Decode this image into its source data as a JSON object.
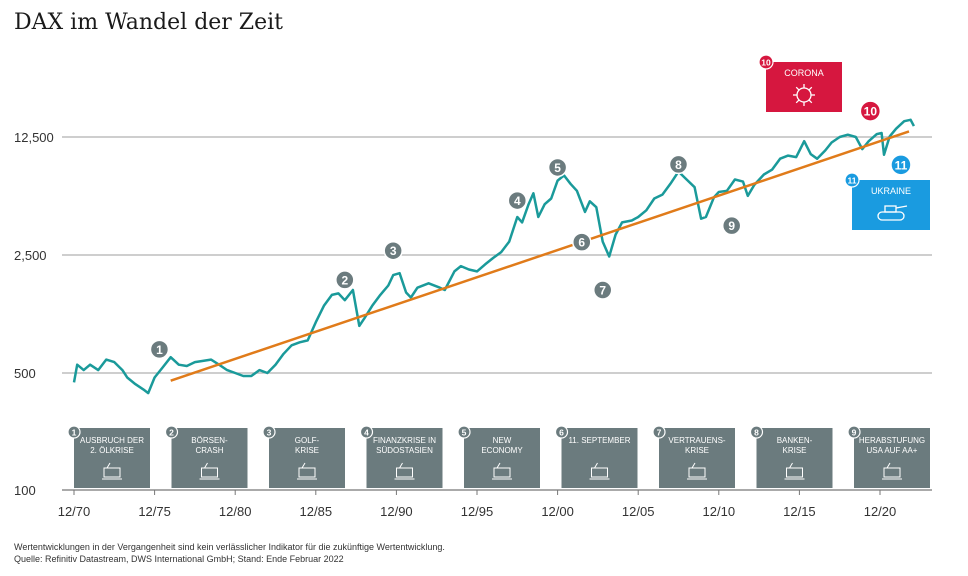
{
  "chart_data": {
    "type": "line",
    "title": "DAX im Wandel der Zeit",
    "y_scale": "log",
    "ylim": [
      100,
      40000
    ],
    "xlim": [
      1970,
      2022.2
    ],
    "yticks": [
      {
        "value": 500,
        "label": "500"
      },
      {
        "value": 2500,
        "label": "2,500"
      },
      {
        "value": 12500,
        "label": "12,500"
      }
    ],
    "ybase_label": "100",
    "xticks": [
      {
        "value": 1970,
        "label": "12/70"
      },
      {
        "value": 1975,
        "label": "12/75"
      },
      {
        "value": 1980,
        "label": "12/80"
      },
      {
        "value": 1985,
        "label": "12/85"
      },
      {
        "value": 1990,
        "label": "12/90"
      },
      {
        "value": 1995,
        "label": "12/95"
      },
      {
        "value": 2000,
        "label": "12/00"
      },
      {
        "value": 2005,
        "label": "12/05"
      },
      {
        "value": 2010,
        "label": "12/10"
      },
      {
        "value": 2015,
        "label": "12/15"
      },
      {
        "value": 2020,
        "label": "12/20"
      }
    ],
    "series": [
      {
        "color": "#1a9a9a",
        "points": [
          [
            1970.0,
            440
          ],
          [
            1970.2,
            560
          ],
          [
            1970.6,
            520
          ],
          [
            1971.0,
            560
          ],
          [
            1971.5,
            520
          ],
          [
            1972.0,
            600
          ],
          [
            1972.5,
            580
          ],
          [
            1973.0,
            520
          ],
          [
            1973.3,
            470
          ],
          [
            1973.8,
            430
          ],
          [
            1974.3,
            400
          ],
          [
            1974.6,
            380
          ],
          [
            1975.0,
            470
          ],
          [
            1975.5,
            540
          ],
          [
            1976.0,
            620
          ],
          [
            1976.5,
            560
          ],
          [
            1977.0,
            550
          ],
          [
            1977.5,
            580
          ],
          [
            1978.0,
            590
          ],
          [
            1978.5,
            600
          ],
          [
            1979.0,
            560
          ],
          [
            1979.5,
            520
          ],
          [
            1980.0,
            500
          ],
          [
            1980.5,
            480
          ],
          [
            1981.0,
            480
          ],
          [
            1981.5,
            520
          ],
          [
            1982.0,
            500
          ],
          [
            1982.5,
            560
          ],
          [
            1983.0,
            650
          ],
          [
            1983.5,
            730
          ],
          [
            1984.0,
            760
          ],
          [
            1984.5,
            780
          ],
          [
            1985.0,
            1000
          ],
          [
            1985.5,
            1250
          ],
          [
            1986.0,
            1450
          ],
          [
            1986.4,
            1480
          ],
          [
            1986.8,
            1350
          ],
          [
            1987.3,
            1550
          ],
          [
            1987.7,
            950
          ],
          [
            1988.0,
            1050
          ],
          [
            1988.5,
            1250
          ],
          [
            1989.0,
            1450
          ],
          [
            1989.5,
            1650
          ],
          [
            1989.8,
            1900
          ],
          [
            1990.2,
            1950
          ],
          [
            1990.6,
            1500
          ],
          [
            1990.9,
            1400
          ],
          [
            1991.3,
            1600
          ],
          [
            1992.0,
            1700
          ],
          [
            1992.7,
            1600
          ],
          [
            1993.0,
            1550
          ],
          [
            1993.6,
            2000
          ],
          [
            1994.0,
            2150
          ],
          [
            1994.5,
            2050
          ],
          [
            1995.0,
            2000
          ],
          [
            1995.5,
            2200
          ],
          [
            1996.0,
            2400
          ],
          [
            1996.5,
            2600
          ],
          [
            1997.0,
            3000
          ],
          [
            1997.5,
            4200
          ],
          [
            1997.8,
            3900
          ],
          [
            1998.2,
            5000
          ],
          [
            1998.5,
            5800
          ],
          [
            1998.8,
            4200
          ],
          [
            1999.2,
            5000
          ],
          [
            1999.6,
            5400
          ],
          [
            2000.0,
            6900
          ],
          [
            2000.4,
            7400
          ],
          [
            2000.8,
            6600
          ],
          [
            2001.2,
            6000
          ],
          [
            2001.7,
            4500
          ],
          [
            2002.0,
            5200
          ],
          [
            2002.4,
            4800
          ],
          [
            2002.8,
            3000
          ],
          [
            2003.2,
            2450
          ],
          [
            2003.6,
            3300
          ],
          [
            2004.0,
            3900
          ],
          [
            2004.6,
            4000
          ],
          [
            2005.0,
            4200
          ],
          [
            2005.5,
            4600
          ],
          [
            2006.0,
            5400
          ],
          [
            2006.5,
            5700
          ],
          [
            2007.0,
            6600
          ],
          [
            2007.5,
            7800
          ],
          [
            2008.0,
            7000
          ],
          [
            2008.5,
            6300
          ],
          [
            2008.9,
            4100
          ],
          [
            2009.2,
            4200
          ],
          [
            2009.7,
            5500
          ],
          [
            2010.0,
            5900
          ],
          [
            2010.5,
            6000
          ],
          [
            2011.0,
            7000
          ],
          [
            2011.5,
            6800
          ],
          [
            2011.8,
            5600
          ],
          [
            2012.2,
            6500
          ],
          [
            2012.8,
            7500
          ],
          [
            2013.3,
            8000
          ],
          [
            2013.8,
            9300
          ],
          [
            2014.3,
            9700
          ],
          [
            2014.8,
            9500
          ],
          [
            2015.3,
            11800
          ],
          [
            2015.7,
            9900
          ],
          [
            2016.1,
            9300
          ],
          [
            2016.6,
            10400
          ],
          [
            2017.0,
            11600
          ],
          [
            2017.5,
            12500
          ],
          [
            2018.0,
            12900
          ],
          [
            2018.5,
            12500
          ],
          [
            2018.9,
            10600
          ],
          [
            2019.3,
            11800
          ],
          [
            2019.8,
            13000
          ],
          [
            2020.1,
            13200
          ],
          [
            2020.25,
            9800
          ],
          [
            2020.6,
            12600
          ],
          [
            2021.0,
            14000
          ],
          [
            2021.5,
            15500
          ],
          [
            2021.9,
            15800
          ],
          [
            2022.1,
            14500
          ]
        ]
      },
      {
        "color": "#e07b1a",
        "points": [
          [
            1976.0,
            450
          ],
          [
            2021.8,
            13500
          ]
        ]
      }
    ],
    "events": [
      {
        "number": "1",
        "year": 1975.3,
        "value": 690
      },
      {
        "number": "2",
        "year": 1986.8,
        "value": 1780
      },
      {
        "number": "3",
        "year": 1989.8,
        "value": 2650
      },
      {
        "number": "4",
        "year": 1997.5,
        "value": 5250
      },
      {
        "number": "5",
        "year": 2000.0,
        "value": 8250
      },
      {
        "number": "6",
        "year": 2001.5,
        "value": 2980
      },
      {
        "number": "7",
        "year": 2002.8,
        "value": 1550
      },
      {
        "number": "8",
        "year": 2007.5,
        "value": 8600
      },
      {
        "number": "9",
        "year": 2010.8,
        "value": 3730
      },
      {
        "number": "10",
        "year": 2019.4,
        "value": 17800,
        "color": "#d6173f",
        "size": "large"
      },
      {
        "number": "11",
        "year": 2021.3,
        "value": 8550,
        "color": "#1a9be0",
        "size": "large"
      }
    ],
    "callouts": [
      {
        "number": "10",
        "label": "CORONA",
        "color": "#d6173f",
        "icon": "virus-icon"
      },
      {
        "number": "11",
        "label": "UKRAINE",
        "color": "#1a9be0",
        "icon": "tank-icon"
      }
    ],
    "crises": [
      {
        "number": "1",
        "lines": [
          "AUSBRUCH DER",
          "2. ÖLKRISE"
        ],
        "icon": "oil-icon"
      },
      {
        "number": "2",
        "lines": [
          "BÖRSEN-",
          "CRASH"
        ],
        "icon": "crash-icon"
      },
      {
        "number": "3",
        "lines": [
          "GOLF-",
          "KRISE"
        ],
        "icon": "tank-icon"
      },
      {
        "number": "4",
        "lines": [
          "FINANZKRISE IN",
          "SÜDOSTASIEN"
        ],
        "icon": "finance-icon"
      },
      {
        "number": "5",
        "lines": [
          "NEW",
          "ECONOMY"
        ],
        "icon": "laptop-icon"
      },
      {
        "number": "6",
        "lines": [
          "11. SEPTEMBER"
        ],
        "icon": "plane-icon"
      },
      {
        "number": "7",
        "lines": [
          "VERTRAUENS-",
          "KRISE"
        ],
        "icon": "scale-icon"
      },
      {
        "number": "8",
        "lines": [
          "BANKEN-",
          "KRISE"
        ],
        "icon": "bank-icon"
      },
      {
        "number": "9",
        "lines": [
          "HERABSTUFUNG",
          "USA AUF AA+"
        ],
        "icon": "building-icon"
      }
    ]
  },
  "footnote": {
    "note": "Wertentwicklungen in der Vergangenheit sind kein verlässlicher Indikator für die zukünftige Wertentwicklung.",
    "source": "Quelle: Refinitiv Datastream, DWS International GmbH; Stand: Ende Februar 2022"
  },
  "colors": {
    "line": "#1a9a9a",
    "trend": "#e07b1a",
    "marker": "#6b7b7e",
    "crisis_box": "#6b7b7e",
    "grid": "#b0b0b0"
  }
}
